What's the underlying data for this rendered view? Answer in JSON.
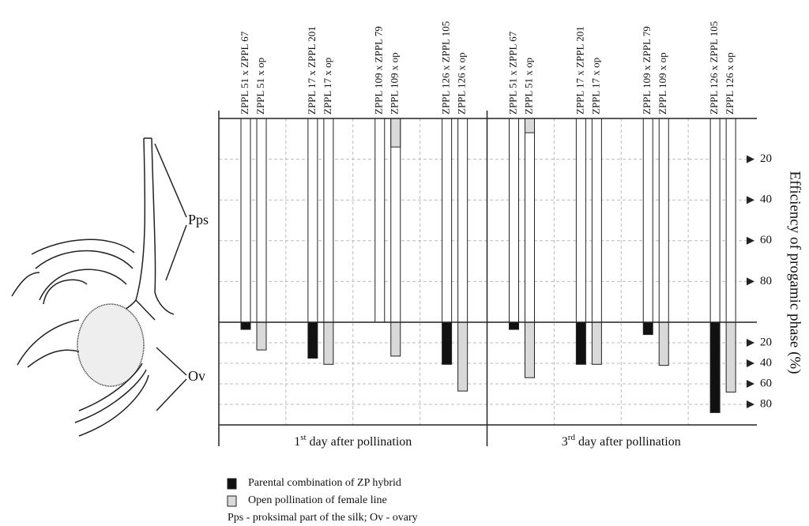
{
  "chart_data": {
    "type": "bar",
    "y_label": "Efficiency of progamic phase (%)",
    "categories": [
      [
        "ZPPL 51 x ZPPL 67",
        "ZPPL 51 x op"
      ],
      [
        "ZPPL 17 x ZPPL 201",
        "ZPPL 17 x op"
      ],
      [
        "ZPPL 109 x ZPPL 79",
        "ZPPL 109 x op"
      ],
      [
        "ZPPL 126 x ZPPL 105",
        "ZPPL 126 x op"
      ],
      [
        "ZPPL 51 x ZPPL 67",
        "ZPPL 51 x op"
      ],
      [
        "ZPPL 17 x ZPPL 201",
        "ZPPL 17 x op"
      ],
      [
        "ZPPL 109 x ZPPL 79",
        "ZPPL 109 x op"
      ],
      [
        "ZPPL 126 x ZPPL 105",
        "ZPPL 126 x op"
      ]
    ],
    "groups": [
      {
        "number": "1",
        "suffix": "st",
        "text": "day after pollination"
      },
      {
        "number": "3",
        "suffix": "rd",
        "text": "day after pollination"
      }
    ],
    "series": [
      {
        "name": "Parental combination of ZP hybrid",
        "color": "#111111",
        "pps_values": [
          0,
          0,
          0,
          0,
          0,
          0,
          0,
          0
        ],
        "ov_values": [
          7,
          35,
          0,
          41,
          7,
          41,
          12,
          88
        ]
      },
      {
        "name": "Open pollination of female line",
        "color": "#d9d9d9",
        "pps_values": [
          0,
          0,
          14,
          0,
          7,
          0,
          0,
          0
        ],
        "ov_values": [
          27,
          41,
          33,
          67,
          54,
          41,
          42,
          68
        ]
      }
    ],
    "pps_ylim": [
      0,
      100
    ],
    "pps_yticks": [
      20,
      40,
      60,
      80
    ],
    "ov_ylim": [
      0,
      100
    ],
    "ov_yticks": [
      20,
      40,
      60,
      80
    ],
    "annotations": {
      "pps": "Pps",
      "ov": "Ov",
      "note": "Pps - proksimal part of the silk; Ov - ovary"
    }
  }
}
